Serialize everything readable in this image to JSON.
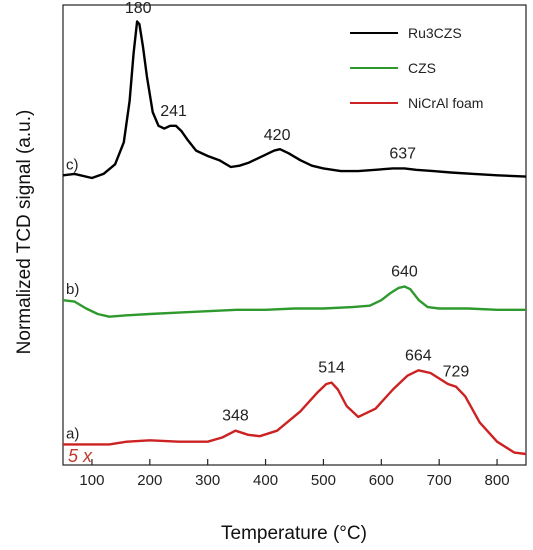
{
  "chart_data": {
    "type": "line",
    "xlabel": "Temperature (°C)",
    "ylabel": "Normalized TCD signal (a.u.)",
    "xlim": [
      50,
      850
    ],
    "xticks": [
      100,
      200,
      300,
      400,
      500,
      600,
      700,
      800
    ],
    "y_ticks_shown": false,
    "grid": false,
    "legend_position": "top-right",
    "scale_annotation": {
      "text": "5 x",
      "color": "#c0392b"
    },
    "series": [
      {
        "name": "Ru3CZS",
        "curve_label": "c)",
        "color": "#000000",
        "offset": 2.0,
        "x": [
          50,
          70,
          100,
          120,
          140,
          155,
          165,
          172,
          178,
          182,
          188,
          195,
          205,
          215,
          225,
          235,
          245,
          255,
          265,
          280,
          300,
          320,
          340,
          355,
          370,
          385,
          400,
          415,
          425,
          440,
          460,
          480,
          500,
          530,
          560,
          590,
          620,
          640,
          660,
          690,
          720,
          760,
          800,
          850
        ],
        "y": [
          0.06,
          0.07,
          0.04,
          0.07,
          0.14,
          0.3,
          0.6,
          0.95,
          1.18,
          1.16,
          1.0,
          0.78,
          0.52,
          0.42,
          0.4,
          0.42,
          0.42,
          0.38,
          0.32,
          0.24,
          0.2,
          0.17,
          0.12,
          0.13,
          0.15,
          0.18,
          0.21,
          0.24,
          0.25,
          0.22,
          0.17,
          0.13,
          0.11,
          0.09,
          0.09,
          0.1,
          0.11,
          0.11,
          0.1,
          0.09,
          0.08,
          0.07,
          0.06,
          0.05
        ]
      },
      {
        "name": "CZS",
        "curve_label": "b)",
        "color": "#2e9a2e",
        "offset": 1.0,
        "x": [
          50,
          70,
          90,
          110,
          130,
          160,
          200,
          250,
          300,
          350,
          400,
          450,
          500,
          550,
          580,
          600,
          615,
          630,
          640,
          650,
          665,
          680,
          700,
          750,
          800,
          850
        ],
        "y": [
          0.15,
          0.14,
          0.09,
          0.05,
          0.03,
          0.04,
          0.05,
          0.06,
          0.07,
          0.08,
          0.08,
          0.09,
          0.09,
          0.1,
          0.11,
          0.15,
          0.2,
          0.24,
          0.25,
          0.23,
          0.15,
          0.1,
          0.09,
          0.09,
          0.08,
          0.08
        ]
      },
      {
        "name": "NiCrAl foam",
        "curve_label": "a)",
        "color": "#cc2222",
        "offset": 0.0,
        "x": [
          50,
          90,
          130,
          160,
          200,
          250,
          300,
          325,
          348,
          370,
          390,
          420,
          460,
          490,
          505,
          514,
          525,
          540,
          560,
          590,
          620,
          645,
          664,
          685,
          700,
          715,
          729,
          745,
          770,
          800,
          830,
          850
        ],
        "y": [
          0.1,
          0.1,
          0.1,
          0.12,
          0.13,
          0.12,
          0.12,
          0.15,
          0.2,
          0.17,
          0.16,
          0.2,
          0.34,
          0.48,
          0.54,
          0.55,
          0.5,
          0.38,
          0.3,
          0.36,
          0.5,
          0.6,
          0.64,
          0.62,
          0.58,
          0.54,
          0.52,
          0.45,
          0.26,
          0.12,
          0.04,
          0.03
        ]
      }
    ],
    "peak_labels": [
      {
        "text": "180",
        "x": 180,
        "series": 0
      },
      {
        "text": "241",
        "x": 241,
        "series": 0
      },
      {
        "text": "420",
        "x": 420,
        "series": 0
      },
      {
        "text": "637",
        "x": 637,
        "series": 0
      },
      {
        "text": "640",
        "x": 640,
        "series": 1
      },
      {
        "text": "348",
        "x": 348,
        "series": 2
      },
      {
        "text": "514",
        "x": 514,
        "series": 2
      },
      {
        "text": "664",
        "x": 664,
        "series": 2
      },
      {
        "text": "729",
        "x": 729,
        "series": 2
      }
    ]
  }
}
